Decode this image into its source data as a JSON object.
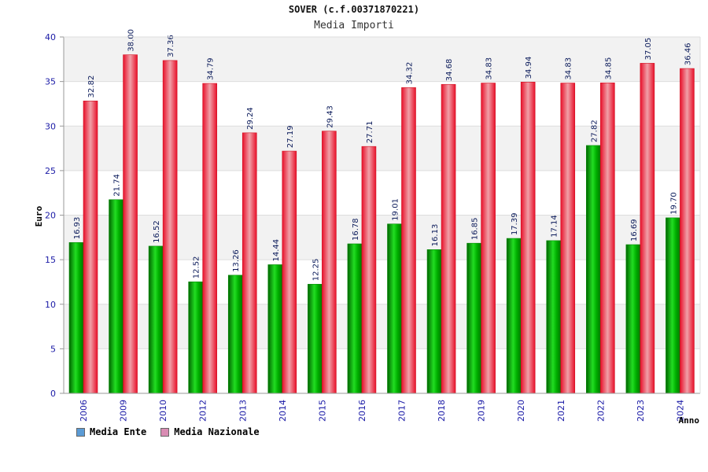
{
  "chart_data": {
    "type": "bar",
    "title": "SOVER (c.f.00371870221)",
    "subtitle": "Media Importi",
    "xlabel": "Anno",
    "ylabel": "Euro",
    "ylim": [
      0,
      40
    ],
    "yticks": [
      0,
      5,
      10,
      15,
      20,
      25,
      30,
      35,
      40
    ],
    "categories": [
      "2006",
      "2009",
      "2010",
      "2012",
      "2013",
      "2014",
      "2015",
      "2016",
      "2017",
      "2018",
      "2019",
      "2020",
      "2021",
      "2022",
      "2023",
      "2024"
    ],
    "series": [
      {
        "name": "Media Ente",
        "color": "#00b000",
        "legend_color": "#5b9bd5",
        "values": [
          16.93,
          21.74,
          16.52,
          12.52,
          13.26,
          14.44,
          12.25,
          16.78,
          19.01,
          16.13,
          16.85,
          17.39,
          17.14,
          27.82,
          16.69,
          19.7
        ],
        "labels": [
          "16.93",
          "21.74",
          "16.52",
          "12.52",
          "13.26",
          "14.44",
          "12.25",
          "16.78",
          "19.01",
          "16.13",
          "16.85",
          "17.39",
          "17.14",
          "27.82",
          "16.69",
          "19.70"
        ]
      },
      {
        "name": "Media Nazionale",
        "color": "#e8202a",
        "legend_color": "#d98cb3",
        "values": [
          32.82,
          38.0,
          37.36,
          34.79,
          29.24,
          27.19,
          29.43,
          27.71,
          34.32,
          34.68,
          34.83,
          34.94,
          34.83,
          34.85,
          37.05,
          36.46
        ],
        "labels": [
          "32.82",
          "38.00",
          "37.36",
          "34.79",
          "29.24",
          "27.19",
          "29.43",
          "27.71",
          "34.32",
          "34.68",
          "34.83",
          "34.94",
          "34.83",
          "34.85",
          "37.05",
          "36.46"
        ]
      }
    ],
    "grid": true,
    "legend_position": "bottom-left"
  }
}
